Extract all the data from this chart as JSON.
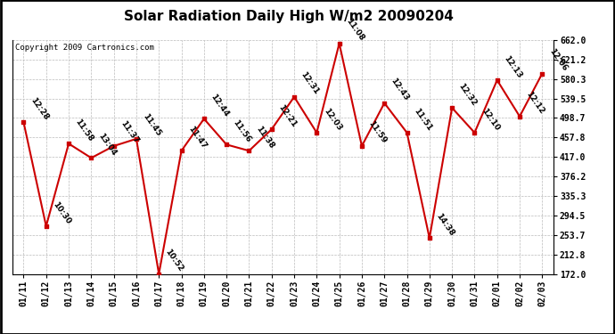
{
  "title": "Solar Radiation Daily High W/m2 20090204",
  "copyright": "Copyright 2009 Cartronics.com",
  "dates": [
    "01/11",
    "01/12",
    "01/13",
    "01/14",
    "01/15",
    "01/16",
    "01/17",
    "01/18",
    "01/19",
    "01/20",
    "01/21",
    "01/22",
    "01/23",
    "01/24",
    "01/25",
    "01/26",
    "01/27",
    "01/28",
    "01/29",
    "01/30",
    "01/31",
    "02/01",
    "02/02",
    "02/03"
  ],
  "values": [
    490,
    272,
    445,
    415,
    440,
    455,
    172,
    430,
    497,
    443,
    430,
    475,
    543,
    468,
    655,
    440,
    530,
    468,
    247,
    520,
    468,
    578,
    502,
    592
  ],
  "labels": [
    "12:28",
    "10:30",
    "11:58",
    "13:04",
    "11:37",
    "11:45",
    "10:52",
    "11:47",
    "12:44",
    "11:56",
    "11:38",
    "12:21",
    "12:31",
    "12:03",
    "11:08",
    "11:59",
    "12:43",
    "11:51",
    "14:38",
    "12:32",
    "12:10",
    "12:13",
    "12:12",
    "12:06"
  ],
  "ymin": 172.0,
  "ymax": 662.0,
  "yticks": [
    172.0,
    212.8,
    253.7,
    294.5,
    335.3,
    376.2,
    417.0,
    457.8,
    498.7,
    539.5,
    580.3,
    621.2,
    662.0
  ],
  "ytick_labels": [
    "172.0",
    "212.8",
    "253.7",
    "294.5",
    "335.3",
    "376.2",
    "417.0",
    "457.8",
    "498.7",
    "539.5",
    "580.3",
    "621.2",
    "662.0"
  ],
  "line_color": "#cc0000",
  "marker_color": "#cc0000",
  "bg_color": "#ffffff",
  "plot_bg_color": "#ffffff",
  "grid_color": "#bbbbbb",
  "title_fontsize": 11,
  "label_fontsize": 6.5,
  "tick_fontsize": 7,
  "copyright_fontsize": 6.5
}
